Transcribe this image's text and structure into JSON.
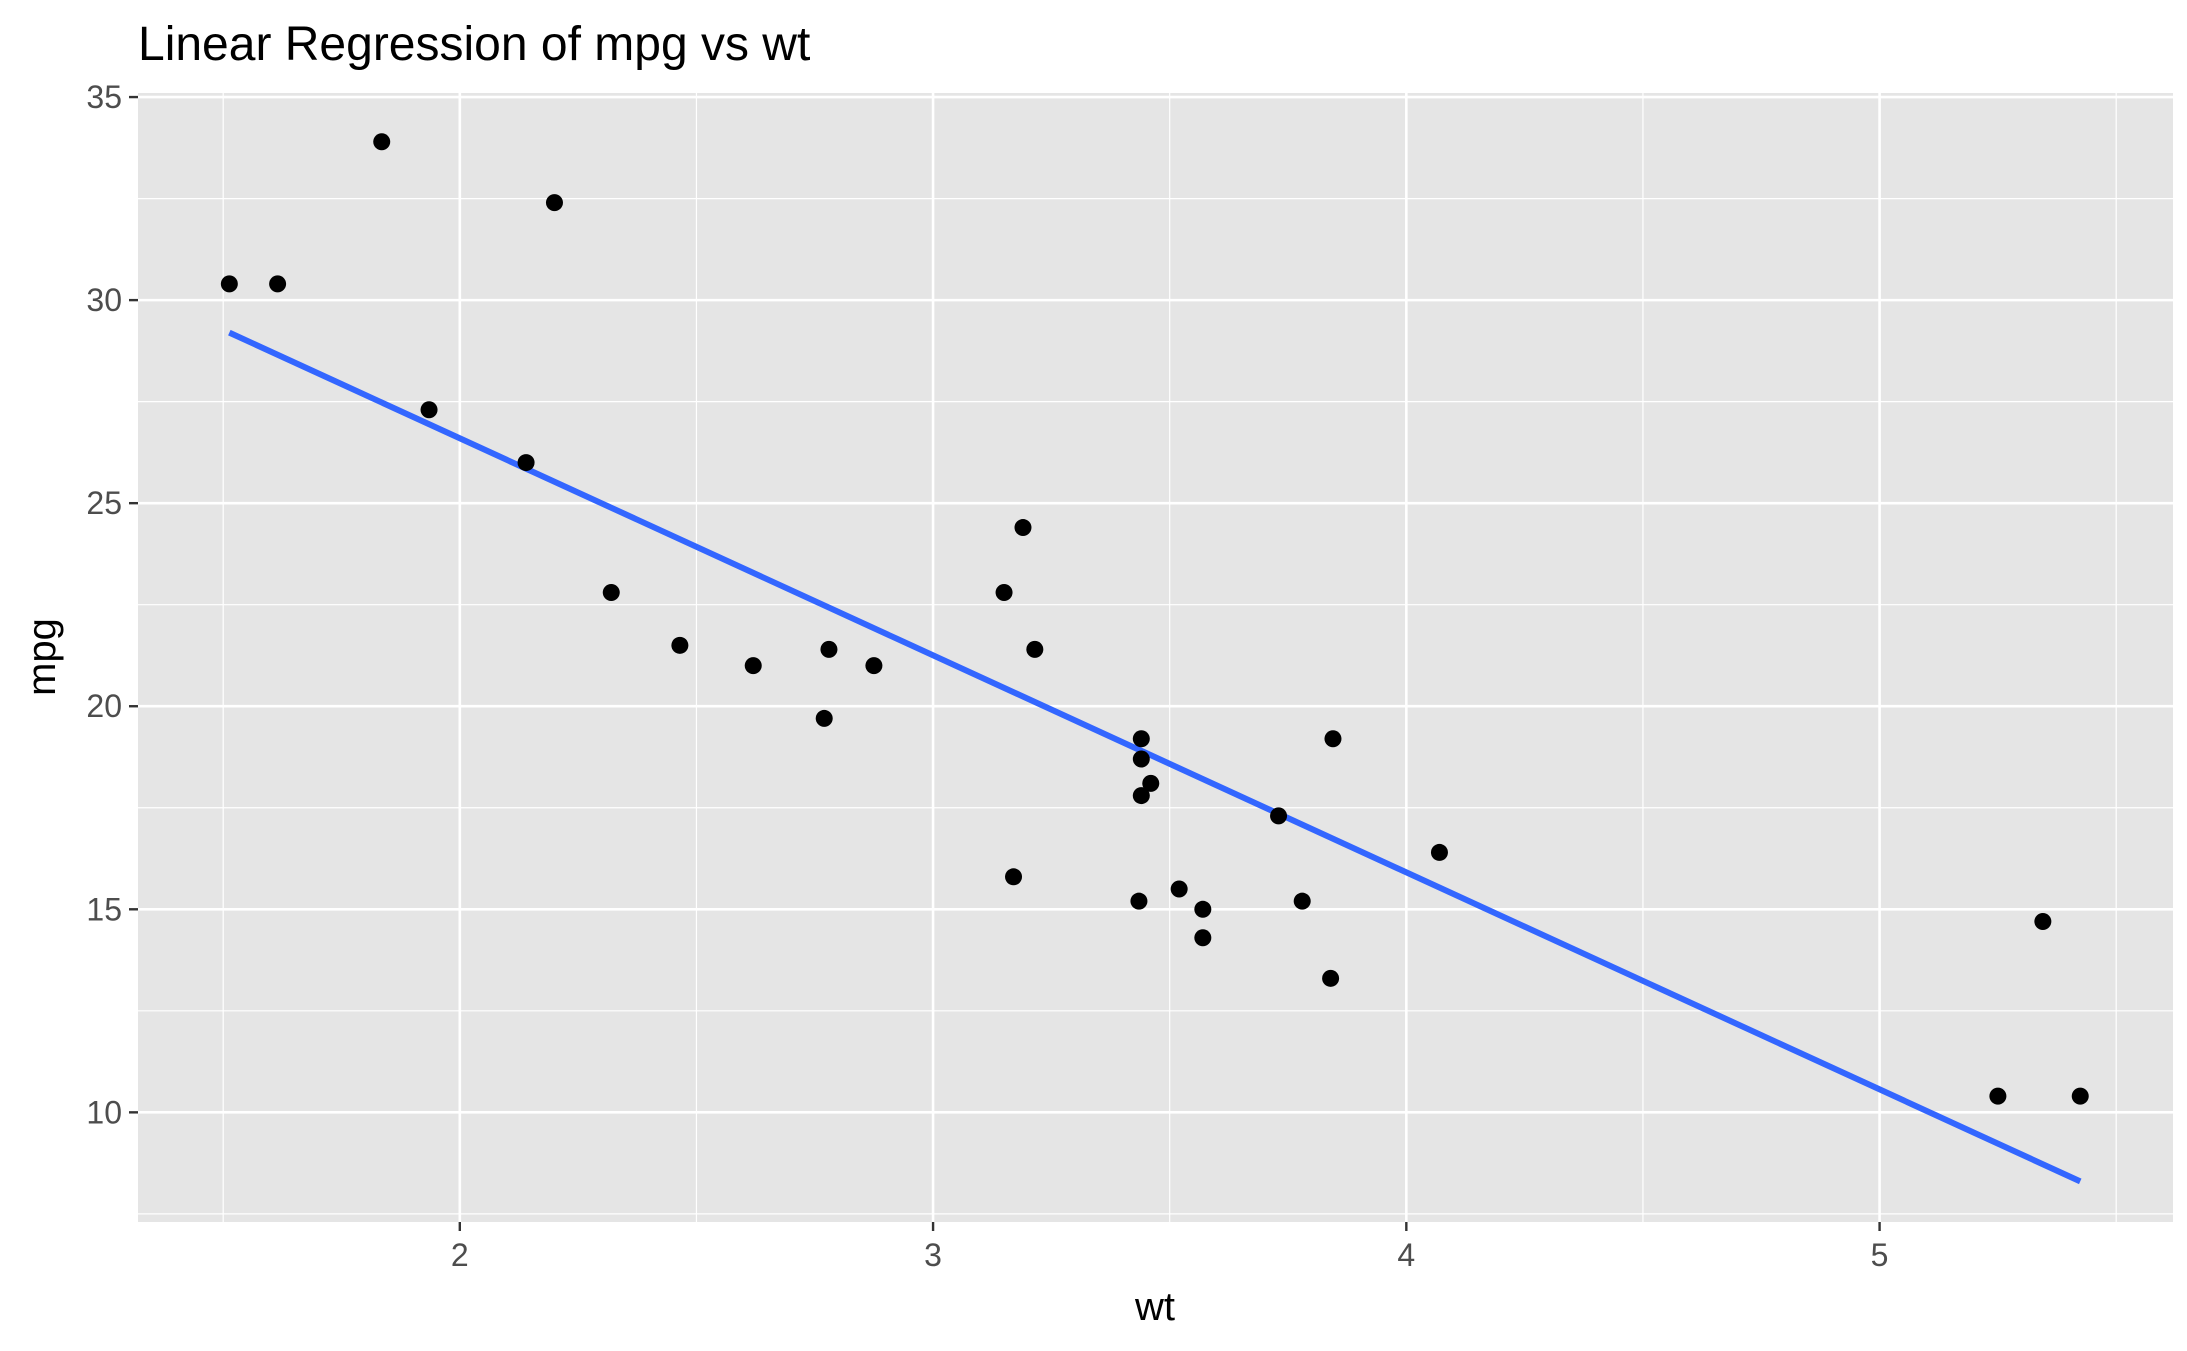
{
  "chart_data": {
    "type": "scatter",
    "title": "Linear Regression of mpg vs wt",
    "xlabel": "wt",
    "ylabel": "mpg",
    "xlim": [
      1.32,
      5.62
    ],
    "ylim": [
      7.3,
      35.1
    ],
    "xticks": [
      2,
      3,
      4,
      5
    ],
    "xtick_labels": [
      "2",
      "3",
      "4",
      "5"
    ],
    "yticks": [
      10,
      15,
      20,
      25,
      30,
      35
    ],
    "ytick_labels": [
      "10",
      "15",
      "20",
      "25",
      "30",
      "35"
    ],
    "grid": true,
    "legend": "none",
    "colors": {
      "panel_background": "#e5e5e5",
      "grid": "#ffffff",
      "points": "#000000",
      "regression_line": "#3366ff"
    },
    "points": [
      {
        "x": 2.62,
        "y": 21.0
      },
      {
        "x": 2.875,
        "y": 21.0
      },
      {
        "x": 2.32,
        "y": 22.8
      },
      {
        "x": 3.215,
        "y": 21.4
      },
      {
        "x": 3.44,
        "y": 18.7
      },
      {
        "x": 3.46,
        "y": 18.1
      },
      {
        "x": 3.57,
        "y": 14.3
      },
      {
        "x": 3.19,
        "y": 24.4
      },
      {
        "x": 3.15,
        "y": 22.8
      },
      {
        "x": 3.44,
        "y": 19.2
      },
      {
        "x": 3.44,
        "y": 17.8
      },
      {
        "x": 4.07,
        "y": 16.4
      },
      {
        "x": 3.73,
        "y": 17.3
      },
      {
        "x": 3.78,
        "y": 15.2
      },
      {
        "x": 5.25,
        "y": 10.4
      },
      {
        "x": 5.424,
        "y": 10.4
      },
      {
        "x": 5.345,
        "y": 14.7
      },
      {
        "x": 2.2,
        "y": 32.4
      },
      {
        "x": 1.615,
        "y": 30.4
      },
      {
        "x": 1.835,
        "y": 33.9
      },
      {
        "x": 2.465,
        "y": 21.5
      },
      {
        "x": 3.52,
        "y": 15.5
      },
      {
        "x": 3.435,
        "y": 15.2
      },
      {
        "x": 3.84,
        "y": 13.3
      },
      {
        "x": 3.845,
        "y": 19.2
      },
      {
        "x": 1.935,
        "y": 27.3
      },
      {
        "x": 2.14,
        "y": 26.0
      },
      {
        "x": 1.513,
        "y": 30.4
      },
      {
        "x": 3.17,
        "y": 15.8
      },
      {
        "x": 2.77,
        "y": 19.7
      },
      {
        "x": 3.57,
        "y": 15.0
      },
      {
        "x": 2.78,
        "y": 21.4
      }
    ],
    "regression_line": {
      "x": [
        1.513,
        5.424
      ],
      "y": [
        29.2,
        8.3
      ]
    }
  }
}
